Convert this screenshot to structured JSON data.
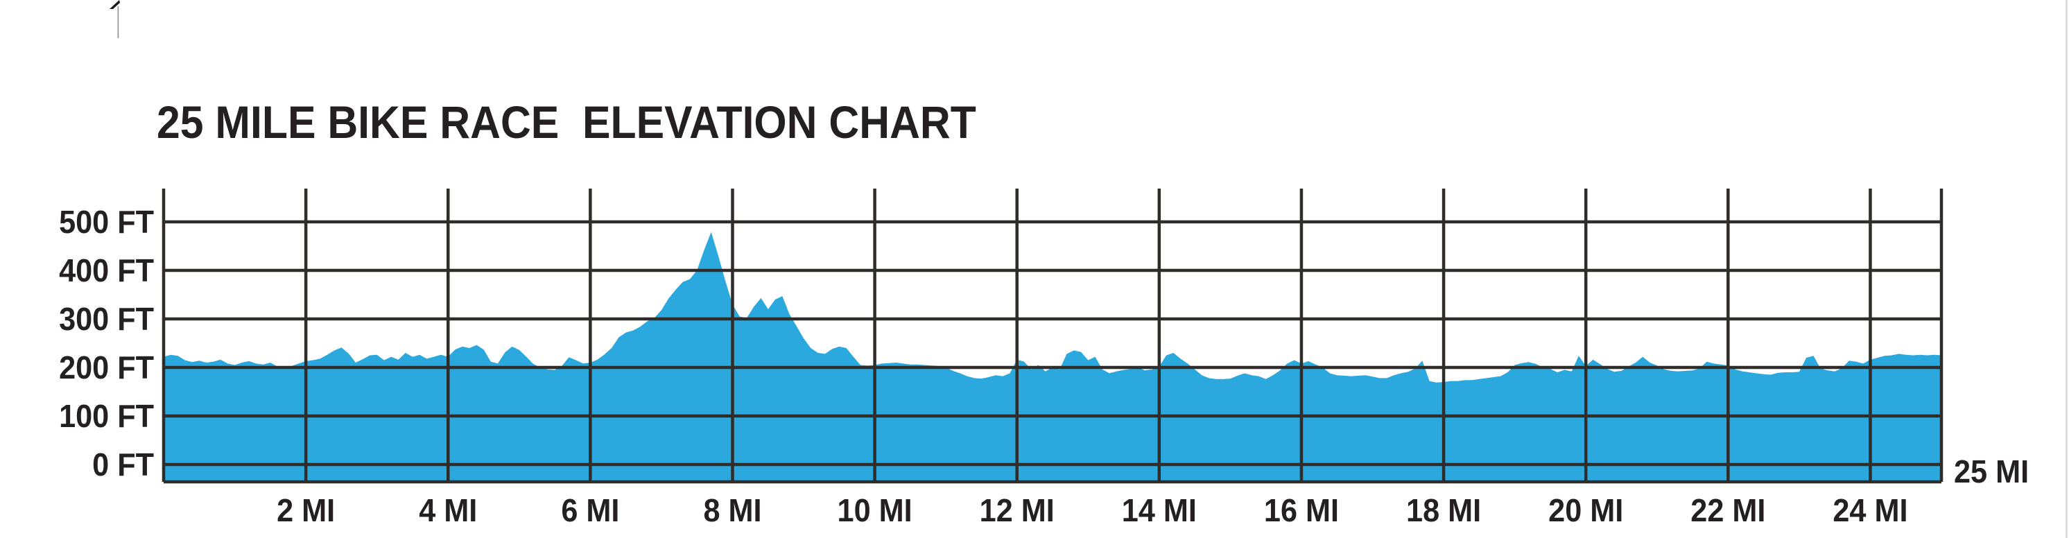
{
  "page": {
    "background_color": "#FFFFFF"
  },
  "chart_data": {
    "type": "area",
    "title": "25 MILE BIKE RACE  ELEVATION CHART",
    "xlabel": "",
    "ylabel": "",
    "x_unit": "MI",
    "y_unit": "FT",
    "xlim_mi": [
      0,
      25
    ],
    "ylim_ft": [
      0,
      500
    ],
    "grid": true,
    "x_gridline_step_mi": 2,
    "y_gridline_step_ft": 100,
    "legend": "none",
    "y_tick_values": [
      500,
      400,
      300,
      200,
      100,
      0
    ],
    "y_tick_labels": [
      "500 FT",
      "400 FT",
      "300 FT",
      "200 FT",
      "100 FT",
      "0 FT"
    ],
    "x_tick_values": [
      2,
      4,
      6,
      8,
      10,
      12,
      14,
      16,
      18,
      20,
      22,
      24
    ],
    "x_tick_labels": [
      "2 MI",
      "4 MI",
      "6 MI",
      "8 MI",
      "10 MI",
      "12 MI",
      "14 MI",
      "16 MI",
      "18 MI",
      "20 MI",
      "22 MI",
      "24 MI"
    ],
    "x_end_label": "25 MI",
    "colors": {
      "area": "#2BA9DE",
      "grid": "#302C2A",
      "text": "#242021",
      "background": "#FFFFFF"
    },
    "series": [
      {
        "name": "elevation",
        "x_start_mi": 0,
        "x_step_mi": 0.1,
        "elevation_ft": [
          222,
          226,
          224,
          215,
          211,
          214,
          210,
          212,
          216,
          208,
          205,
          210,
          213,
          208,
          206,
          210,
          202,
          198,
          203,
          208,
          213,
          215,
          218,
          226,
          235,
          241,
          229,
          210,
          217,
          225,
          226,
          215,
          222,
          216,
          230,
          222,
          226,
          218,
          222,
          226,
          222,
          237,
          243,
          240,
          246,
          237,
          212,
          208,
          231,
          243,
          236,
          222,
          207,
          200,
          196,
          195,
          203,
          221,
          215,
          208,
          210,
          216,
          227,
          240,
          262,
          272,
          276,
          284,
          295,
          302,
          318,
          342,
          360,
          376,
          382,
          400,
          442,
          479,
          430,
          378,
          330,
          305,
          302,
          325,
          343,
          320,
          340,
          347,
          310,
          285,
          260,
          240,
          230,
          228,
          238,
          243,
          240,
          222,
          205,
          204,
          205,
          208,
          209,
          210,
          208,
          206,
          206,
          205,
          204,
          203,
          200,
          193,
          188,
          182,
          178,
          177,
          180,
          184,
          182,
          188,
          216,
          212,
          196,
          205,
          192,
          200,
          196,
          228,
          235,
          232,
          215,
          222,
          196,
          188,
          192,
          195,
          197,
          200,
          194,
          196,
          202,
          225,
          230,
          218,
          208,
          196,
          184,
          178,
          176,
          176,
          177,
          183,
          188,
          184,
          182,
          176,
          184,
          194,
          208,
          215,
          208,
          213,
          206,
          200,
          188,
          184,
          183,
          182,
          183,
          184,
          181,
          178,
          178,
          184,
          188,
          191,
          198,
          214,
          172,
          169,
          170,
          172,
          172,
          174,
          174,
          176,
          178,
          180,
          182,
          190,
          205,
          209,
          211,
          207,
          200,
          197,
          190,
          195,
          192,
          224,
          203,
          216,
          207,
          197,
          191,
          193,
          202,
          210,
          222,
          210,
          204,
          196,
          193,
          192,
          193,
          194,
          198,
          212,
          208,
          206,
          204,
          196,
          192,
          190,
          188,
          186,
          185,
          189,
          190,
          190,
          191,
          220,
          224,
          198,
          194,
          192,
          198,
          214,
          212,
          208,
          216,
          220,
          224,
          225,
          228,
          226,
          225,
          226,
          225,
          226,
          225
        ]
      }
    ]
  }
}
